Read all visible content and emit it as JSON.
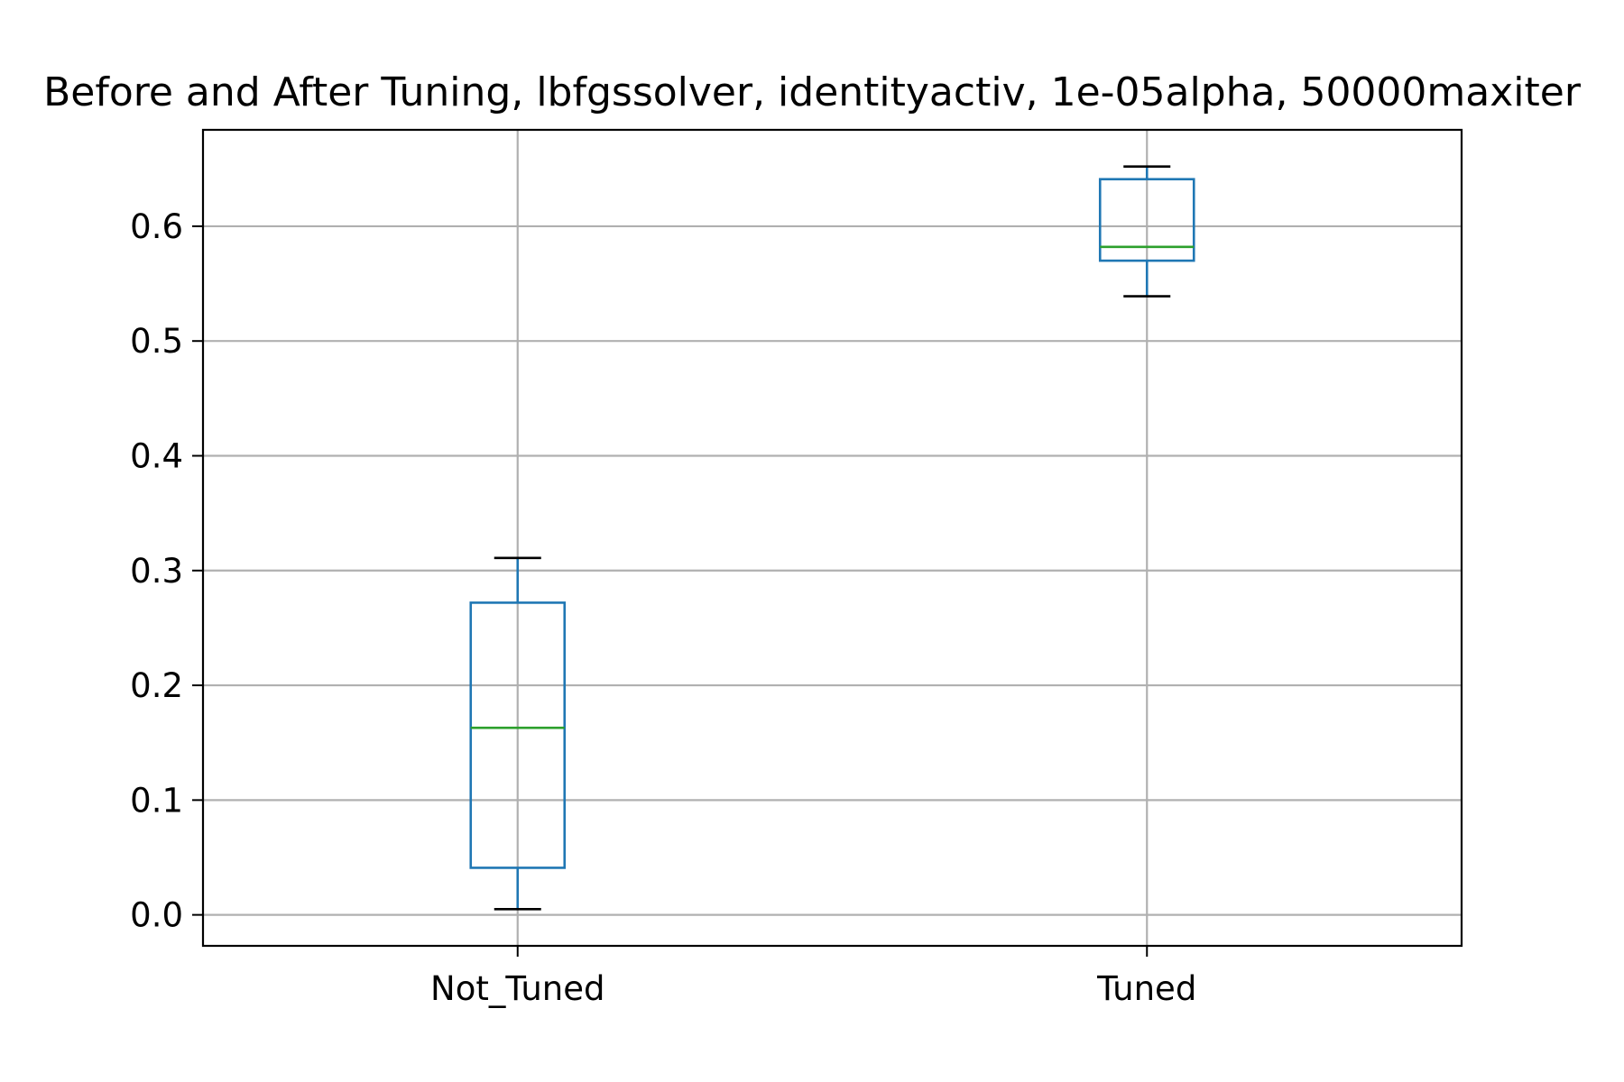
{
  "chart_data": {
    "type": "box",
    "title": "Before and After Tuning, lbfgssolver, identityactiv, 1e-05alpha, 50000maxiter",
    "xlabel": "",
    "ylabel": "",
    "categories": [
      "Not_Tuned",
      "Tuned"
    ],
    "boxes": [
      {
        "category": "Not_Tuned",
        "whisker_low": 0.005,
        "q1": 0.041,
        "median": 0.163,
        "q3": 0.272,
        "whisker_high": 0.311
      },
      {
        "category": "Tuned",
        "whisker_low": 0.539,
        "q1": 0.57,
        "median": 0.582,
        "q3": 0.641,
        "whisker_high": 0.652
      }
    ],
    "ylim": [
      -0.027,
      0.684
    ],
    "yticks": [
      0.0,
      0.1,
      0.2,
      0.3,
      0.4,
      0.5,
      0.6
    ],
    "ytick_labels": [
      "0.0",
      "0.1",
      "0.2",
      "0.3",
      "0.4",
      "0.5",
      "0.6"
    ],
    "grid": true,
    "colors": {
      "box": "#1f77b4",
      "median": "#2ca02c",
      "cap": "#000000",
      "grid": "#b0b0b0",
      "axes": "#000000"
    }
  }
}
